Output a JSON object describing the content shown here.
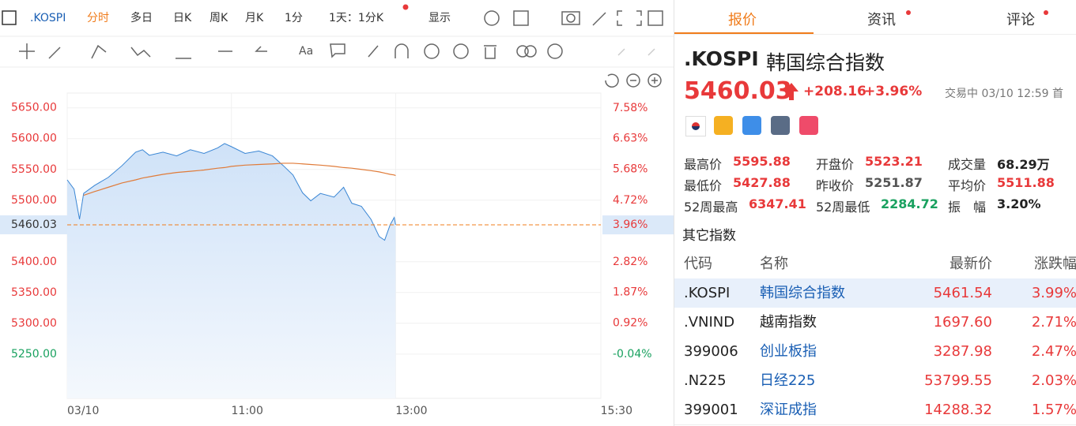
{
  "toolbar": {
    "items": [
      ".KOSPI",
      "分时",
      "多日",
      "日K",
      "周K",
      "月K",
      "1分",
      "1天：1分K",
      "显示"
    ]
  },
  "chart_data": {
    "type": "line",
    "x": [
      0,
      5,
      9,
      12,
      20,
      30,
      40,
      50,
      55,
      60,
      70,
      80,
      90,
      100,
      110,
      115,
      120,
      130,
      140,
      150,
      158,
      165,
      172,
      178,
      185,
      195,
      202,
      208,
      215,
      222,
      228,
      232,
      236,
      239,
      240
    ],
    "series": [
      {
        "color": "#3a86d4",
        "values": [
          5533,
          5518,
          5469,
          5511,
          5524,
          5537,
          5556,
          5578,
          5582,
          5573,
          5578,
          5572,
          5582,
          5576,
          5585,
          5592,
          5587,
          5576,
          5580,
          5572,
          5556,
          5541,
          5512,
          5499,
          5511,
          5505,
          5521,
          5495,
          5490,
          5469,
          5441,
          5435,
          5460,
          5472,
          5460.03
        ]
      },
      {
        "color": "#e07b39",
        "values": [
          null,
          null,
          null,
          5508,
          5514,
          5521,
          5528,
          5533,
          5536,
          5538,
          5542,
          5545,
          5547,
          5549,
          5552,
          5553,
          5555,
          5557,
          5558,
          5559,
          5560,
          5560,
          5559,
          5558,
          5557,
          5555,
          5553,
          5552,
          5550,
          5548,
          5546,
          5544,
          5542,
          5541,
          5540
        ]
      }
    ],
    "xlim": [
      0,
      390
    ],
    "xticks": [
      {
        "value": 0,
        "label": "03/10"
      },
      {
        "value": 120,
        "label": "11:00"
      },
      {
        "value": 240,
        "label": "13:00"
      },
      {
        "value": 390,
        "label": "15:30"
      }
    ],
    "ylim": [
      5178,
      5674
    ],
    "yticks": [
      {
        "value": 5650,
        "label": "5650.00"
      },
      {
        "value": 5600,
        "label": "5600.00"
      },
      {
        "value": 5550,
        "label": "5550.00"
      },
      {
        "value": 5500,
        "label": "5500.00"
      },
      {
        "value": 5400,
        "label": "5400.00"
      },
      {
        "value": 5350,
        "label": "5350.00"
      },
      {
        "value": 5300,
        "label": "5300.00"
      },
      {
        "value": 5250,
        "label": "5250.00"
      }
    ],
    "y2lim": [
      -1.41,
      8.04
    ],
    "y2ticks": [
      {
        "value": 7.58,
        "label": "7.58%"
      },
      {
        "value": 6.63,
        "label": "6.63%"
      },
      {
        "value": 5.68,
        "label": "5.68%"
      },
      {
        "value": 4.72,
        "label": "4.72%"
      },
      {
        "value": 3.96,
        "label": "3.96%"
      },
      {
        "value": 2.82,
        "label": "2.82%"
      },
      {
        "value": 1.87,
        "label": "1.87%"
      },
      {
        "value": 0.92,
        "label": "0.92%"
      },
      {
        "value": -0.04,
        "label": "-0.04%"
      }
    ],
    "current_value": 5460.03,
    "grid": true,
    "up_color": "#e8393a",
    "down_color": "#19a15f"
  },
  "quote": {
    "tabs": [
      "报价",
      "资讯",
      "评论"
    ],
    "symbol": ".KOSPI",
    "name": "韩国综合指数",
    "price": "5460.03",
    "change": "+208.16",
    "change_pct": "+3.96%",
    "status": "交易中 03/10 12:59 首",
    "stats": [
      {
        "label": "最高价",
        "value": "5595.88"
      },
      {
        "label": "开盘价",
        "value": "5523.21"
      },
      {
        "label": "成交量",
        "value": "68.29万"
      },
      {
        "label": "最低价",
        "value": "5427.88"
      },
      {
        "label": "昨收价",
        "value": "5251.87"
      },
      {
        "label": "平均价",
        "value": "5511.88"
      },
      {
        "label": "52周最高",
        "value": "6347.41"
      },
      {
        "label": "52周最低",
        "value": "2284.72"
      },
      {
        "label": "振　幅",
        "value": "3.20%"
      }
    ]
  },
  "other_indices": {
    "title": "其它指数",
    "header": [
      "代码",
      "名称",
      "最新价",
      "涨跌幅"
    ],
    "rows": [
      [
        ".KOSPI",
        "韩国综合指数",
        "5461.54",
        "3.99%"
      ],
      [
        ".VNIND",
        "越南指数",
        "1697.60",
        "2.71%"
      ],
      [
        "399006",
        "创业板指",
        "3287.98",
        "2.47%"
      ],
      [
        ".N225",
        "日经225",
        "53799.55",
        "2.03%"
      ],
      [
        "399001",
        "深证成指",
        "14288.32",
        "1.57%"
      ]
    ]
  }
}
